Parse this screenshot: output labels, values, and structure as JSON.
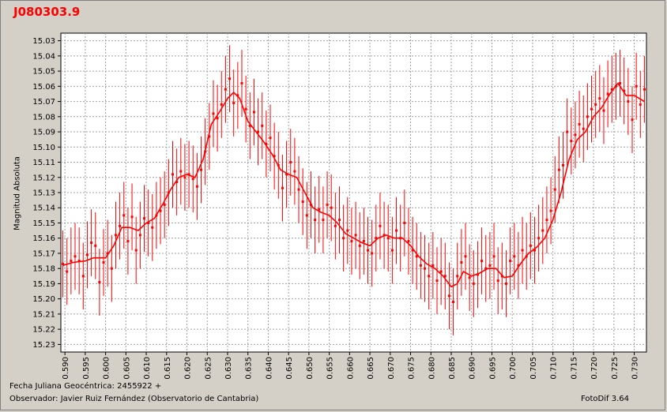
{
  "header": {
    "title": "J080303.9"
  },
  "footer": {
    "date_label": "Fecha Juliana Geocéntrica: 2455922 +",
    "observer": "Observador: Javier Ruiz Fernández (Observatorio de Cantabria)",
    "software": "FotoDif 3.64"
  },
  "colors": {
    "background": "#d4d0c8",
    "plot": "#ffffff",
    "series": "#ff0000",
    "grid": "#a0a0a0"
  },
  "chart_data": {
    "type": "scatter",
    "title": "J080303.9",
    "ylabel": "Magnitud Absoluta",
    "xlabel": "",
    "xlim": [
      0.589,
      0.733
    ],
    "ylim": [
      15.235,
      15.025
    ],
    "y_inverted": true,
    "grid": true,
    "x_ticks": [
      "0.590",
      "0.595",
      "0.600",
      "0.605",
      "0.610",
      "0.615",
      "0.620",
      "0.625",
      "0.630",
      "0.635",
      "0.640",
      "0.645",
      "0.650",
      "0.655",
      "0.660",
      "0.665",
      "0.670",
      "0.675",
      "0.680",
      "0.685",
      "0.690",
      "0.695",
      "0.700",
      "0.705",
      "0.710",
      "0.715",
      "0.720",
      "0.725",
      "0.730"
    ],
    "y_ticks": [
      "15.03",
      "15.04",
      "15.05",
      "15.06",
      "15.07",
      "15.08",
      "15.09",
      "15.10",
      "15.11",
      "15.12",
      "15.13",
      "15.14",
      "15.15",
      "15.16",
      "15.17",
      "15.18",
      "15.19",
      "15.20",
      "15.21",
      "15.22",
      "15.23"
    ],
    "error_bar": 0.022,
    "points": [
      [
        0.5895,
        15.177
      ],
      [
        0.5905,
        15.182
      ],
      [
        0.5915,
        15.175
      ],
      [
        0.5925,
        15.172
      ],
      [
        0.5935,
        15.175
      ],
      [
        0.5945,
        15.185
      ],
      [
        0.5955,
        15.171
      ],
      [
        0.5965,
        15.163
      ],
      [
        0.5975,
        15.165
      ],
      [
        0.5985,
        15.189
      ],
      [
        0.5995,
        15.176
      ],
      [
        0.6005,
        15.17
      ],
      [
        0.6015,
        15.18
      ],
      [
        0.6025,
        15.158
      ],
      [
        0.6035,
        15.152
      ],
      [
        0.6045,
        15.145
      ],
      [
        0.6055,
        15.162
      ],
      [
        0.6065,
        15.146
      ],
      [
        0.6075,
        15.168
      ],
      [
        0.6085,
        15.158
      ],
      [
        0.6095,
        15.147
      ],
      [
        0.6105,
        15.15
      ],
      [
        0.6115,
        15.153
      ],
      [
        0.6125,
        15.145
      ],
      [
        0.6135,
        15.142
      ],
      [
        0.6145,
        15.138
      ],
      [
        0.6155,
        15.13
      ],
      [
        0.6165,
        15.118
      ],
      [
        0.6175,
        15.123
      ],
      [
        0.6185,
        15.116
      ],
      [
        0.6195,
        15.12
      ],
      [
        0.6205,
        15.118
      ],
      [
        0.6215,
        15.121
      ],
      [
        0.6225,
        15.126
      ],
      [
        0.6235,
        15.115
      ],
      [
        0.6245,
        15.103
      ],
      [
        0.6255,
        15.093
      ],
      [
        0.6265,
        15.078
      ],
      [
        0.6275,
        15.081
      ],
      [
        0.6285,
        15.072
      ],
      [
        0.6295,
        15.062
      ],
      [
        0.6305,
        15.055
      ],
      [
        0.6315,
        15.071
      ],
      [
        0.6325,
        15.066
      ],
      [
        0.6335,
        15.058
      ],
      [
        0.6345,
        15.075
      ],
      [
        0.6355,
        15.086
      ],
      [
        0.6365,
        15.077
      ],
      [
        0.6375,
        15.09
      ],
      [
        0.6385,
        15.086
      ],
      [
        0.6395,
        15.098
      ],
      [
        0.6405,
        15.094
      ],
      [
        0.6415,
        15.106
      ],
      [
        0.6425,
        15.112
      ],
      [
        0.6435,
        15.127
      ],
      [
        0.6445,
        15.118
      ],
      [
        0.6455,
        15.11
      ],
      [
        0.6465,
        15.116
      ],
      [
        0.6475,
        15.128
      ],
      [
        0.6485,
        15.136
      ],
      [
        0.6495,
        15.145
      ],
      [
        0.6505,
        15.138
      ],
      [
        0.6515,
        15.148
      ],
      [
        0.6525,
        15.141
      ],
      [
        0.6535,
        15.148
      ],
      [
        0.6545,
        15.138
      ],
      [
        0.6555,
        15.14
      ],
      [
        0.6565,
        15.152
      ],
      [
        0.6575,
        15.148
      ],
      [
        0.6585,
        15.16
      ],
      [
        0.6595,
        15.155
      ],
      [
        0.6605,
        15.162
      ],
      [
        0.6615,
        15.158
      ],
      [
        0.6625,
        15.165
      ],
      [
        0.6635,
        15.162
      ],
      [
        0.6645,
        15.168
      ],
      [
        0.6655,
        15.17
      ],
      [
        0.6665,
        15.16
      ],
      [
        0.6675,
        15.152
      ],
      [
        0.6685,
        15.158
      ],
      [
        0.6695,
        15.16
      ],
      [
        0.6705,
        15.168
      ],
      [
        0.6715,
        15.155
      ],
      [
        0.6725,
        15.16
      ],
      [
        0.6735,
        15.15
      ],
      [
        0.6745,
        15.162
      ],
      [
        0.6755,
        15.168
      ],
      [
        0.6765,
        15.172
      ],
      [
        0.6775,
        15.178
      ],
      [
        0.6785,
        15.18
      ],
      [
        0.6795,
        15.185
      ],
      [
        0.6805,
        15.178
      ],
      [
        0.6815,
        15.188
      ],
      [
        0.6825,
        15.182
      ],
      [
        0.6835,
        15.185
      ],
      [
        0.6845,
        15.198
      ],
      [
        0.6855,
        15.202
      ],
      [
        0.6865,
        15.185
      ],
      [
        0.6875,
        15.176
      ],
      [
        0.6885,
        15.172
      ],
      [
        0.6895,
        15.186
      ],
      [
        0.6905,
        15.19
      ],
      [
        0.6915,
        15.184
      ],
      [
        0.6925,
        15.175
      ],
      [
        0.6935,
        15.18
      ],
      [
        0.6945,
        15.178
      ],
      [
        0.6955,
        15.172
      ],
      [
        0.6965,
        15.188
      ],
      [
        0.6975,
        15.185
      ],
      [
        0.6985,
        15.19
      ],
      [
        0.6995,
        15.175
      ],
      [
        0.7005,
        15.172
      ],
      [
        0.7015,
        15.178
      ],
      [
        0.7025,
        15.168
      ],
      [
        0.7035,
        15.172
      ],
      [
        0.7045,
        15.165
      ],
      [
        0.7055,
        15.168
      ],
      [
        0.7065,
        15.16
      ],
      [
        0.7075,
        15.155
      ],
      [
        0.7085,
        15.148
      ],
      [
        0.7095,
        15.142
      ],
      [
        0.7105,
        15.128
      ],
      [
        0.7115,
        15.115
      ],
      [
        0.7125,
        15.112
      ],
      [
        0.7135,
        15.09
      ],
      [
        0.7145,
        15.096
      ],
      [
        0.7155,
        15.092
      ],
      [
        0.7165,
        15.085
      ],
      [
        0.7175,
        15.088
      ],
      [
        0.7185,
        15.08
      ],
      [
        0.7195,
        15.075
      ],
      [
        0.7205,
        15.072
      ],
      [
        0.7215,
        15.068
      ],
      [
        0.7225,
        15.076
      ],
      [
        0.7235,
        15.065
      ],
      [
        0.7245,
        15.062
      ],
      [
        0.7255,
        15.06
      ],
      [
        0.7265,
        15.058
      ],
      [
        0.7275,
        15.063
      ],
      [
        0.7285,
        15.07
      ],
      [
        0.7295,
        15.082
      ],
      [
        0.7305,
        15.06
      ],
      [
        0.7315,
        15.072
      ],
      [
        0.7325,
        15.062
      ]
    ],
    "trend": [
      [
        0.5895,
        15.178
      ],
      [
        0.592,
        15.176
      ],
      [
        0.595,
        15.175
      ],
      [
        0.597,
        15.173
      ],
      [
        0.6,
        15.173
      ],
      [
        0.602,
        15.165
      ],
      [
        0.604,
        15.153
      ],
      [
        0.606,
        15.153
      ],
      [
        0.608,
        15.155
      ],
      [
        0.61,
        15.15
      ],
      [
        0.612,
        15.147
      ],
      [
        0.614,
        15.138
      ],
      [
        0.616,
        15.128
      ],
      [
        0.618,
        15.12
      ],
      [
        0.62,
        15.118
      ],
      [
        0.622,
        15.12
      ],
      [
        0.624,
        15.108
      ],
      [
        0.626,
        15.085
      ],
      [
        0.628,
        15.077
      ],
      [
        0.63,
        15.068
      ],
      [
        0.6315,
        15.064
      ],
      [
        0.633,
        15.068
      ],
      [
        0.635,
        15.083
      ],
      [
        0.637,
        15.09
      ],
      [
        0.639,
        15.097
      ],
      [
        0.641,
        15.105
      ],
      [
        0.643,
        15.115
      ],
      [
        0.645,
        15.118
      ],
      [
        0.647,
        15.12
      ],
      [
        0.649,
        15.13
      ],
      [
        0.651,
        15.14
      ],
      [
        0.653,
        15.143
      ],
      [
        0.655,
        15.145
      ],
      [
        0.657,
        15.15
      ],
      [
        0.659,
        15.157
      ],
      [
        0.661,
        15.16
      ],
      [
        0.663,
        15.163
      ],
      [
        0.665,
        15.165
      ],
      [
        0.667,
        15.16
      ],
      [
        0.669,
        15.158
      ],
      [
        0.671,
        15.16
      ],
      [
        0.673,
        15.16
      ],
      [
        0.675,
        15.165
      ],
      [
        0.677,
        15.172
      ],
      [
        0.679,
        15.177
      ],
      [
        0.681,
        15.18
      ],
      [
        0.683,
        15.185
      ],
      [
        0.685,
        15.192
      ],
      [
        0.6865,
        15.19
      ],
      [
        0.688,
        15.182
      ],
      [
        0.69,
        15.185
      ],
      [
        0.692,
        15.183
      ],
      [
        0.694,
        15.18
      ],
      [
        0.696,
        15.18
      ],
      [
        0.698,
        15.186
      ],
      [
        0.7,
        15.185
      ],
      [
        0.702,
        15.177
      ],
      [
        0.704,
        15.17
      ],
      [
        0.706,
        15.166
      ],
      [
        0.708,
        15.16
      ],
      [
        0.71,
        15.148
      ],
      [
        0.712,
        15.13
      ],
      [
        0.714,
        15.108
      ],
      [
        0.716,
        15.095
      ],
      [
        0.718,
        15.09
      ],
      [
        0.72,
        15.08
      ],
      [
        0.722,
        15.074
      ],
      [
        0.724,
        15.065
      ],
      [
        0.726,
        15.058
      ],
      [
        0.728,
        15.066
      ],
      [
        0.73,
        15.066
      ],
      [
        0.7325,
        15.07
      ]
    ]
  }
}
